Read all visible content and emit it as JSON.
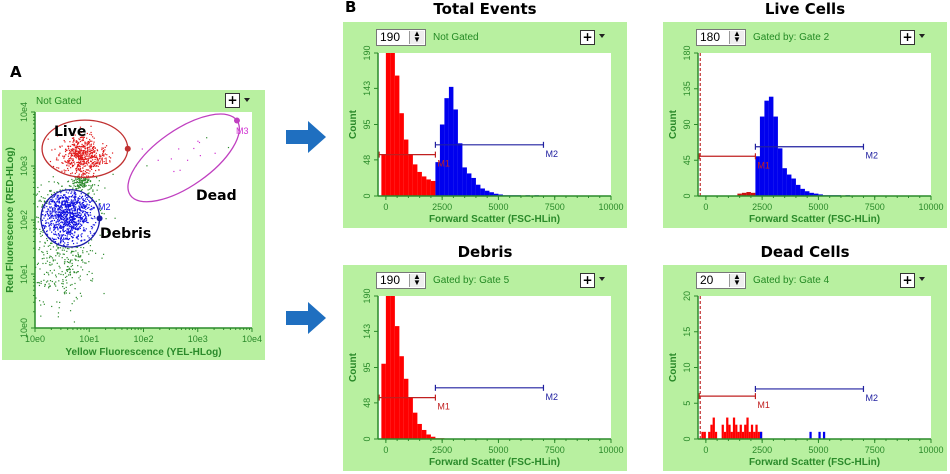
{
  "figure": {
    "panel_a_label": "A",
    "panel_b_label": "B",
    "arrow_color": "#1f6fc0"
  },
  "chart_data": [
    {
      "type": "scatter",
      "status": "Not Gated",
      "xlabel": "Yellow Fluorescence (YEL-HLog)",
      "ylabel": "Red Fluorescence (RED-HLog)",
      "x_scale": "log",
      "y_scale": "log",
      "xlim": [
        1,
        10000
      ],
      "ylim": [
        1,
        10000
      ],
      "x_ticks": [
        "10e0",
        "10e1",
        "10e2",
        "10e3",
        "10e4"
      ],
      "y_ticks": [
        "10e0",
        "10e1",
        "10e2",
        "10e3",
        "10e4"
      ],
      "ungated_color": "#2e8b2e",
      "gates": [
        {
          "name": "Live",
          "marker": "M1",
          "color": "#e01818",
          "outline": "#c03030",
          "center_log": [
            0.92,
            3.32
          ],
          "radius_log": [
            0.79,
            0.53
          ],
          "angle": 0
        },
        {
          "name": "Debris",
          "marker": "M2",
          "color": "#1010e0",
          "outline": "#1a1aa8",
          "center_log": [
            0.65,
            2.03
          ],
          "radius_log": [
            0.54,
            0.53
          ],
          "angle": 0
        },
        {
          "name": "Dead",
          "marker": "M3",
          "color": "#d030d0",
          "outline": "#c040c0",
          "center_log": [
            2.74,
            3.15
          ],
          "radius_log": [
            1.2,
            0.52
          ],
          "angle": 35
        }
      ],
      "populations": [
        {
          "center_log": [
            0.85,
            3.2
          ],
          "sd_log": [
            0.2,
            0.18
          ],
          "count": 550
        },
        {
          "center_log": [
            0.6,
            2.15
          ],
          "sd_log": [
            0.25,
            0.25
          ],
          "count": 950
        },
        {
          "center_log": [
            0.5,
            1.4
          ],
          "sd_log": [
            0.28,
            0.5
          ],
          "count": 380
        },
        {
          "center_log": [
            0.85,
            2.72
          ],
          "sd_log": [
            0.1,
            0.08
          ],
          "count": 120
        },
        {
          "center_log": [
            2.75,
            3.2
          ],
          "sd_log": [
            0.45,
            0.25
          ],
          "count": 16
        }
      ]
    },
    {
      "type": "bar",
      "title": "Total Events",
      "spin_value": "190",
      "gate_text": "Not Gated",
      "xlabel": "Forward Scatter (FSC-HLin)",
      "ylabel": "Count",
      "xlim": [
        -350,
        10000
      ],
      "ylim": [
        0,
        190
      ],
      "x_ticks": [
        "0",
        "2500",
        "5000",
        "7500",
        "10000"
      ],
      "y_ticks": [
        "0",
        "48",
        "95",
        "143",
        "190"
      ],
      "series": [
        {
          "color": "#ff0000",
          "start": -200,
          "width": 200,
          "values": [
            55,
            190,
            190,
            160,
            110,
            75,
            55,
            42,
            32,
            26,
            22,
            20
          ]
        },
        {
          "color": "#0000ee",
          "start": 2200,
          "width": 200,
          "values": [
            45,
            95,
            130,
            145,
            115,
            70,
            38,
            30,
            24,
            15,
            10,
            7,
            5,
            3,
            2,
            1,
            1,
            1,
            1,
            0,
            1,
            0,
            1
          ]
        }
      ],
      "markers": [
        {
          "label": "M1",
          "range": [
            -300,
            2200
          ],
          "y": 55,
          "color": "#c02020"
        },
        {
          "label": "M2",
          "range": [
            2200,
            7000
          ],
          "y": 68,
          "color": "#2020a0"
        }
      ]
    },
    {
      "type": "bar",
      "title": "Live Cells",
      "spin_value": "180",
      "gate_text": "Gated by: Gate 2",
      "xlabel": "Forward Scatter (FSC-HLin)",
      "ylabel": "Count",
      "xlim": [
        -350,
        10000
      ],
      "ylim": [
        0,
        180
      ],
      "x_ticks": [
        "0",
        "2500",
        "5000",
        "7500",
        "10000"
      ],
      "y_ticks": [
        "0",
        "45",
        "90",
        "135",
        "180"
      ],
      "dashed_line": -250,
      "series": [
        {
          "color": "#cc1010",
          "start": 1400,
          "width": 200,
          "values": [
            3,
            4,
            5,
            4
          ]
        },
        {
          "color": "#0000ee",
          "start": 2200,
          "width": 200,
          "values": [
            50,
            100,
            120,
            125,
            100,
            60,
            35,
            27,
            22,
            14,
            9,
            6,
            4,
            3,
            2,
            1,
            1,
            1,
            1,
            0,
            1
          ]
        }
      ],
      "markers": [
        {
          "label": "M1",
          "range": [
            -300,
            2200
          ],
          "y": 50,
          "color": "#c02020"
        },
        {
          "label": "M2",
          "range": [
            2200,
            7000
          ],
          "y": 62,
          "color": "#2020a0"
        }
      ]
    },
    {
      "type": "bar",
      "title": "Debris",
      "spin_value": "190",
      "gate_text": "Gated by: Gate 5",
      "xlabel": "Forward Scatter (FSC-HLin)",
      "ylabel": "Count",
      "xlim": [
        -350,
        10000
      ],
      "ylim": [
        0,
        190
      ],
      "x_ticks": [
        "0",
        "2500",
        "5000",
        "7500",
        "10000"
      ],
      "y_ticks": [
        "0",
        "48",
        "95",
        "143",
        "190"
      ],
      "series": [
        {
          "color": "#ff0000",
          "start": -200,
          "width": 200,
          "values": [
            100,
            190,
            190,
            150,
            110,
            80,
            55,
            35,
            20,
            12,
            6,
            3,
            1,
            1
          ]
        }
      ],
      "markers": [
        {
          "label": "M1",
          "range": [
            -300,
            2200
          ],
          "y": 55,
          "color": "#c02020"
        },
        {
          "label": "M2",
          "range": [
            2200,
            7000
          ],
          "y": 68,
          "color": "#2020a0"
        }
      ]
    },
    {
      "type": "bar",
      "title": "Dead Cells",
      "spin_value": "20",
      "gate_text": "Gated by: Gate 4",
      "xlabel": "Forward Scatter (FSC-HLin)",
      "ylabel": "Count",
      "xlim": [
        -350,
        10000
      ],
      "ylim": [
        0,
        20
      ],
      "x_ticks": [
        "0",
        "2500",
        "5000",
        "7500",
        "10000"
      ],
      "y_ticks": [
        "0",
        "5",
        "10",
        "15",
        "20"
      ],
      "dashed_line": -250,
      "series": [
        {
          "color": "#ff0000",
          "start": -200,
          "width": 100,
          "values": [
            1,
            1,
            0,
            1,
            2,
            3,
            1,
            0,
            0,
            2,
            1,
            3,
            2,
            1,
            3,
            2,
            1,
            2,
            1,
            2,
            3,
            1,
            2,
            1,
            2,
            1,
            1
          ]
        },
        {
          "color": "#0000ee",
          "start": 2400,
          "width": 100,
          "values": [
            1,
            0,
            0,
            0,
            0,
            0,
            0,
            0,
            0,
            0,
            0,
            0,
            0,
            0,
            0,
            0,
            0,
            0,
            0,
            0,
            0,
            0,
            1,
            0,
            0,
            0,
            1,
            0,
            1
          ]
        }
      ],
      "markers": [
        {
          "label": "M1",
          "range": [
            -300,
            2200
          ],
          "y": 6,
          "color": "#c02020"
        },
        {
          "label": "M2",
          "range": [
            2200,
            7000
          ],
          "y": 7,
          "color": "#2020a0"
        }
      ]
    }
  ]
}
